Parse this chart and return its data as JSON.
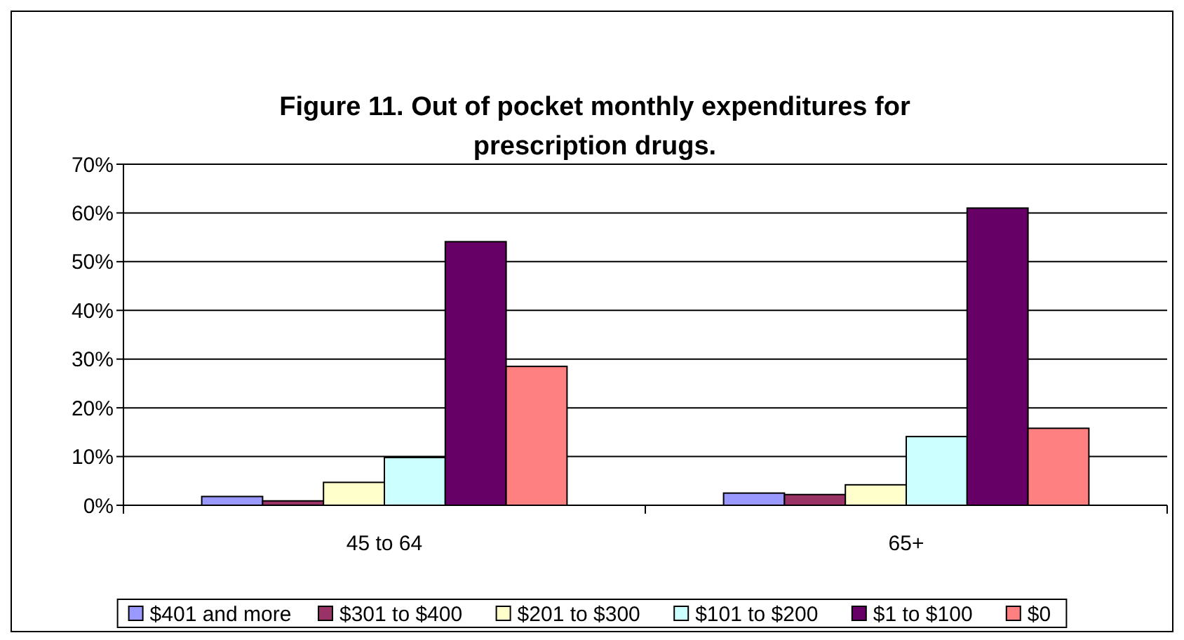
{
  "chart_data": {
    "type": "bar",
    "title": "Figure 11. Out of pocket monthly expenditures for prescription drugs.",
    "categories": [
      "45 to 64",
      "65+"
    ],
    "series": [
      {
        "name": "$401 and more",
        "color": "#9999ff",
        "values": [
          1.8,
          2.5
        ]
      },
      {
        "name": "$301 to $400",
        "color": "#993366",
        "values": [
          0.9,
          2.2
        ]
      },
      {
        "name": "$201 to $300",
        "color": "#ffffcc",
        "values": [
          4.7,
          4.2
        ]
      },
      {
        "name": "$101 to $200",
        "color": "#ccffff",
        "values": [
          9.8,
          14.1
        ]
      },
      {
        "name": "$1 to $100",
        "color": "#660066",
        "values": [
          54.1,
          61
        ]
      },
      {
        "name": "$0",
        "color": "#ff8080",
        "values": [
          28.5,
          15.8
        ]
      }
    ],
    "ylim": [
      0,
      70
    ],
    "yticks": [
      {
        "value": 0,
        "label": "0%"
      },
      {
        "value": 10,
        "label": "10%"
      },
      {
        "value": 20,
        "label": "20%"
      },
      {
        "value": 30,
        "label": "30%"
      },
      {
        "value": 40,
        "label": "40%"
      },
      {
        "value": 50,
        "label": "50%"
      },
      {
        "value": 60,
        "label": "60%"
      },
      {
        "value": 70,
        "label": "70%"
      }
    ],
    "grid": "y",
    "legend": "bottom"
  }
}
